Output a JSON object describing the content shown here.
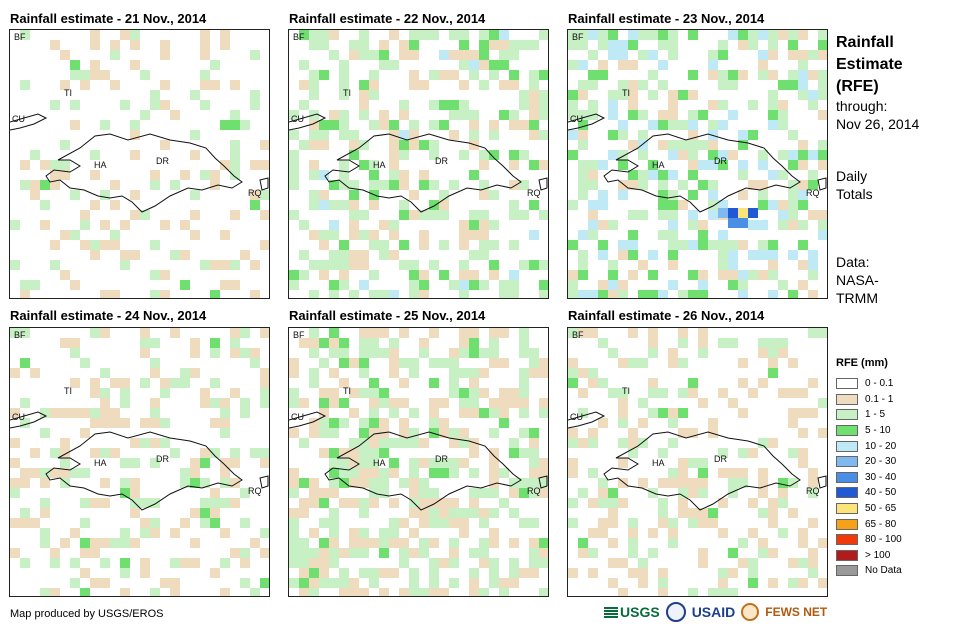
{
  "panels": [
    {
      "title": "Rainfall estimate - 21 Nov., 2014"
    },
    {
      "title": "Rainfall estimate - 22 Nov., 2014"
    },
    {
      "title": "Rainfall estimate - 23 Nov., 2014"
    },
    {
      "title": "Rainfall estimate - 24 Nov., 2014"
    },
    {
      "title": "Rainfall estimate - 25 Nov., 2014"
    },
    {
      "title": "Rainfall estimate - 26 Nov., 2014"
    }
  ],
  "map_labels": {
    "bf": "BF",
    "cu": "CU",
    "ti": "TI",
    "ha": "HA",
    "dr": "DR",
    "rq": "RQ"
  },
  "side": {
    "title_line1": "Rainfall",
    "title_line2": "Estimate",
    "title_line3": "(RFE)",
    "through": "through:",
    "date": "Nov 26, 2014",
    "daily1": "Daily",
    "daily2": "Totals",
    "data1": "Data:",
    "data2": "NASA-",
    "data3": "TRMM"
  },
  "legend": {
    "title": "RFE (mm)",
    "items": [
      {
        "label": "0 - 0.1",
        "color": "#ffffff"
      },
      {
        "label": "0.1 - 1",
        "color": "#efdcbf"
      },
      {
        "label": "1 - 5",
        "color": "#c7f0c4"
      },
      {
        "label": "5 - 10",
        "color": "#6fe06f"
      },
      {
        "label": "10 - 20",
        "color": "#bfeaf5"
      },
      {
        "label": "20 - 30",
        "color": "#7fb9f0"
      },
      {
        "label": "30 - 40",
        "color": "#4b8ee6"
      },
      {
        "label": "40 - 50",
        "color": "#2058d6"
      },
      {
        "label": "50 - 65",
        "color": "#fce37a"
      },
      {
        "label": "65 - 80",
        "color": "#f5a21a"
      },
      {
        "label": "80 - 100",
        "color": "#f03a0a"
      },
      {
        "label": "> 100",
        "color": "#b21b1b"
      },
      {
        "label": "No Data",
        "color": "#999999"
      }
    ]
  },
  "footer": {
    "credit": "Map produced by USGS/EROS",
    "logo_usgs": "USGS",
    "logo_usaid": "USAID",
    "logo_fews": "FEWS NET"
  }
}
